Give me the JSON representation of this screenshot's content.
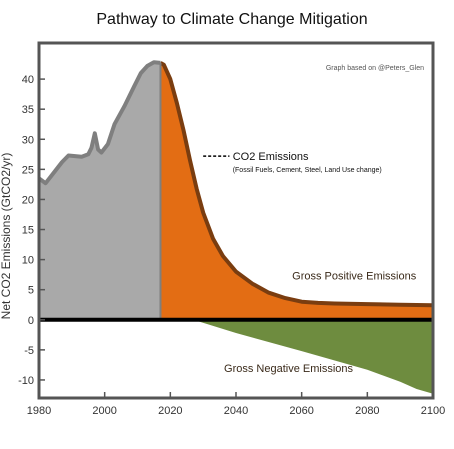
{
  "chart_data": {
    "type": "area",
    "title": "Pathway to Climate Change Mitigation",
    "source_note": "Graph based on @Peters_Glen",
    "ylabel": "Net CO2 Emissions (GtCO2/yr)",
    "xlabel": "",
    "xlim": [
      1980,
      2100
    ],
    "ylim": [
      -13,
      46
    ],
    "x_ticks": [
      1980,
      2000,
      2020,
      2040,
      2060,
      2080,
      2100
    ],
    "y_ticks": [
      40,
      35,
      30,
      25,
      20,
      15,
      10,
      5,
      0,
      -5,
      -10
    ],
    "grid": false,
    "legend": "none",
    "series": [
      {
        "name": "historical",
        "color": "#a9a9a9",
        "x": [
          1980,
          1982,
          1985,
          1987,
          1989,
          1991,
          1993,
          1995,
          1996,
          1997,
          1998,
          1999,
          2001,
          2003,
          2006,
          2009,
          2011,
          2013,
          2015,
          2017
        ],
        "y": [
          23.5,
          22.7,
          24.8,
          26.2,
          27.3,
          27.2,
          27.1,
          27.5,
          28.6,
          31.0,
          28.3,
          27.8,
          29.2,
          32.5,
          35.5,
          38.8,
          41.0,
          42.2,
          42.8,
          42.7
        ]
      },
      {
        "name": "CO2 Emissions",
        "color": "#e36d14",
        "x": [
          2017,
          2018,
          2020,
          2022,
          2024,
          2026,
          2028,
          2030,
          2033,
          2036,
          2040,
          2045,
          2050,
          2055,
          2060,
          2065,
          2070,
          2080,
          2090,
          2100
        ],
        "y": [
          42.7,
          42.4,
          40.0,
          36.0,
          31.5,
          26.5,
          21.8,
          17.8,
          13.5,
          10.6,
          8.0,
          6.0,
          4.5,
          3.6,
          3.0,
          2.8,
          2.7,
          2.6,
          2.5,
          2.4
        ]
      },
      {
        "name": "Gross Negative Emissions",
        "color": "#6e8c3f",
        "x": [
          2027,
          2040,
          2060,
          2080,
          2090,
          2095,
          2100
        ],
        "y": [
          0,
          -2.2,
          -5.2,
          -8.3,
          -10.3,
          -11.5,
          -12.3
        ]
      }
    ],
    "annotations": {
      "co2_label": "CO2 Emissions",
      "co2_sublabel": "(Fossil Fuels, Cement, Steel, Land Use change)",
      "positive_label": "Gross Positive Emissions",
      "negative_label": "Gross Negative Emissions"
    },
    "colors": {
      "historical_fill": "#a9a9a9",
      "historical_line": "#7f7f7f",
      "positive_fill": "#e36d14",
      "positive_line": "#7a3d10",
      "negative_fill": "#6e8c3f",
      "zero_line": "#000000",
      "frame": "#555555",
      "text": "#3a2a1a"
    }
  }
}
